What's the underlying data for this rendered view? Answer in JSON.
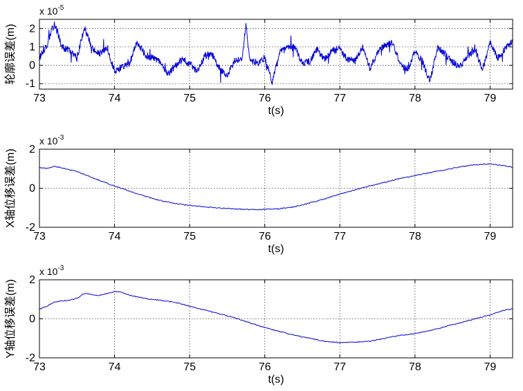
{
  "chart_data": [
    {
      "type": "line",
      "xlabel": "t(s)",
      "ylabel": "轮廓误差(m)",
      "scale_base": "x 10",
      "scale_exponent": "-5",
      "xlim": [
        73,
        79.3
      ],
      "ylim": [
        -1.3,
        2.5
      ],
      "xticks": [
        73,
        74,
        75,
        76,
        77,
        78,
        79
      ],
      "yticks": [
        -1,
        0,
        1,
        2
      ],
      "grid": true,
      "noisy": true,
      "color": "#0000d6",
      "series": [
        {
          "x": [
            73.0,
            73.1,
            73.2,
            73.3,
            73.4,
            73.5,
            73.6,
            73.7,
            73.8,
            73.9,
            74.0,
            74.1,
            74.2,
            74.3,
            74.4,
            74.5,
            74.6,
            74.7,
            74.8,
            74.9,
            75.0,
            75.1,
            75.2,
            75.3,
            75.4,
            75.5,
            75.6,
            75.7,
            75.75,
            75.8,
            75.9,
            76.0,
            76.1,
            76.2,
            76.3,
            76.4,
            76.5,
            76.6,
            76.7,
            76.8,
            76.9,
            77.0,
            77.1,
            77.2,
            77.3,
            77.4,
            77.5,
            77.6,
            77.7,
            77.8,
            77.9,
            78.0,
            78.1,
            78.2,
            78.3,
            78.4,
            78.5,
            78.6,
            78.7,
            78.8,
            78.9,
            79.0,
            79.1,
            79.2,
            79.3
          ],
          "y": [
            0.4,
            1.1,
            2.3,
            1.0,
            0.8,
            0.4,
            2.1,
            0.9,
            0.6,
            0.9,
            -0.3,
            -0.1,
            0.1,
            1.3,
            0.6,
            0.4,
            0.2,
            -0.5,
            -0.1,
            0.3,
            0.1,
            -0.4,
            0.5,
            0.6,
            -0.2,
            -0.6,
            0.3,
            0.4,
            2.3,
            0.3,
            0.1,
            0.4,
            -0.9,
            0.7,
            0.9,
            1.0,
            0.1,
            0.2,
            0.9,
            0.3,
            0.8,
            0.9,
            0.3,
            0.2,
            1.0,
            -0.2,
            0.7,
            1.1,
            1.2,
            0.1,
            -0.3,
            0.8,
            0.2,
            -0.9,
            1.0,
            0.6,
            0.2,
            -0.1,
            0.5,
            0.8,
            -0.2,
            1.2,
            0.4,
            0.9,
            1.4
          ]
        }
      ]
    },
    {
      "type": "line",
      "xlabel": "t(s)",
      "ylabel": "X轴位移误差(m)",
      "scale_base": "x 10",
      "scale_exponent": "-3",
      "xlim": [
        73,
        79.3
      ],
      "ylim": [
        -2,
        2
      ],
      "xticks": [
        73,
        74,
        75,
        76,
        77,
        78,
        79
      ],
      "yticks": [
        -2,
        0,
        2
      ],
      "grid": true,
      "noisy": false,
      "color": "#0000d6",
      "series": [
        {
          "x": [
            73.0,
            73.1,
            73.2,
            73.3,
            73.4,
            73.5,
            73.6,
            73.7,
            73.8,
            73.9,
            74.0,
            74.2,
            74.4,
            74.6,
            74.8,
            75.0,
            75.2,
            75.4,
            75.6,
            75.8,
            76.0,
            76.2,
            76.4,
            76.6,
            76.8,
            77.0,
            77.2,
            77.4,
            77.6,
            77.8,
            78.0,
            78.2,
            78.4,
            78.6,
            78.8,
            79.0,
            79.1,
            79.2,
            79.3
          ],
          "y": [
            1.05,
            1.02,
            1.12,
            1.05,
            0.95,
            0.85,
            0.7,
            0.55,
            0.4,
            0.25,
            0.12,
            -0.15,
            -0.4,
            -0.62,
            -0.78,
            -0.88,
            -0.96,
            -1.02,
            -1.05,
            -1.1,
            -1.08,
            -1.05,
            -0.95,
            -0.75,
            -0.55,
            -0.3,
            -0.08,
            0.12,
            0.3,
            0.5,
            0.65,
            0.8,
            0.95,
            1.1,
            1.2,
            1.25,
            1.2,
            1.15,
            1.08
          ]
        }
      ]
    },
    {
      "type": "line",
      "xlabel": "t(s)",
      "ylabel": "Y轴位移误差(m)",
      "scale_base": "x 10",
      "scale_exponent": "-3",
      "xlim": [
        73,
        79.3
      ],
      "ylim": [
        -2,
        2
      ],
      "xticks": [
        73,
        74,
        75,
        76,
        77,
        78,
        79
      ],
      "yticks": [
        -2,
        0,
        2
      ],
      "grid": true,
      "noisy": false,
      "color": "#0000d6",
      "series": [
        {
          "x": [
            73.0,
            73.1,
            73.2,
            73.3,
            73.4,
            73.5,
            73.6,
            73.7,
            73.8,
            73.9,
            74.0,
            74.1,
            74.2,
            74.4,
            74.6,
            74.8,
            75.0,
            75.2,
            75.4,
            75.6,
            75.8,
            76.0,
            76.2,
            76.4,
            76.6,
            76.8,
            77.0,
            77.2,
            77.4,
            77.6,
            77.8,
            78.0,
            78.2,
            78.4,
            78.6,
            78.8,
            79.0,
            79.2,
            79.3
          ],
          "y": [
            0.5,
            0.65,
            0.85,
            0.92,
            0.95,
            1.05,
            1.3,
            1.25,
            1.2,
            1.3,
            1.4,
            1.35,
            1.2,
            1.05,
            0.95,
            0.85,
            0.65,
            0.45,
            0.25,
            0.05,
            -0.2,
            -0.45,
            -0.65,
            -0.85,
            -1.0,
            -1.15,
            -1.22,
            -1.2,
            -1.15,
            -1.0,
            -0.85,
            -0.75,
            -0.6,
            -0.4,
            -0.2,
            0.0,
            0.2,
            0.45,
            0.5
          ]
        }
      ]
    }
  ]
}
